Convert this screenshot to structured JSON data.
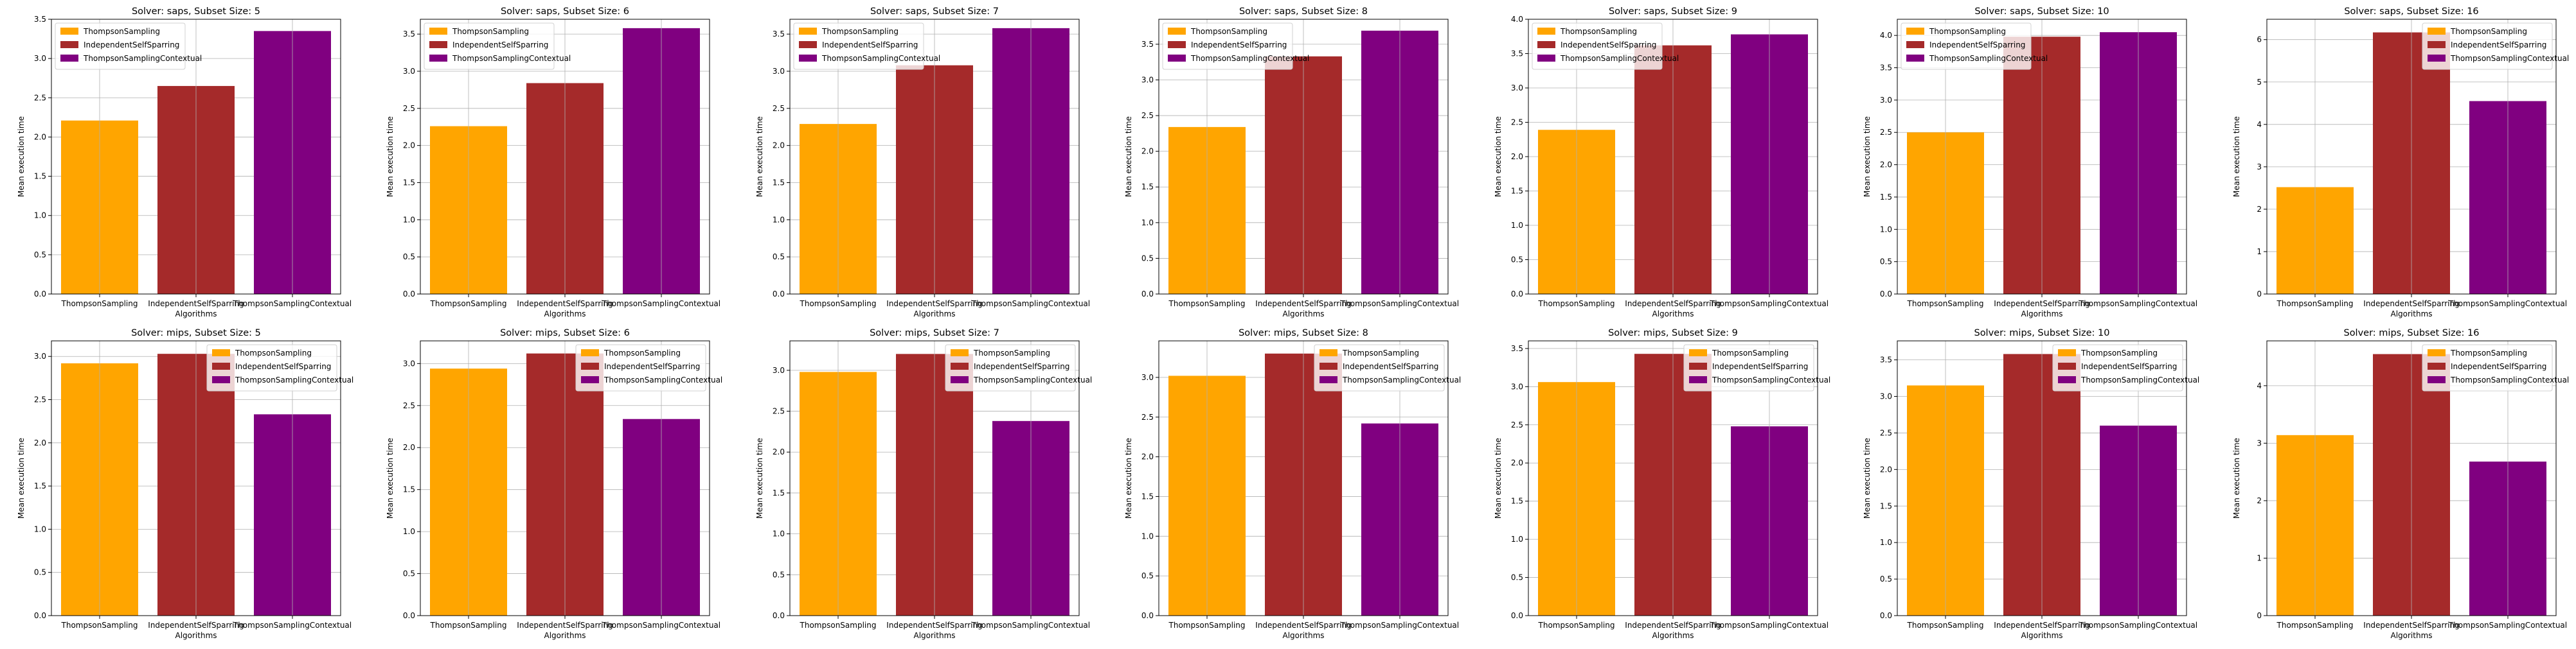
{
  "colors": {
    "ThompsonSampling": "#ffa500",
    "IndependentSelfSparring": "#a52a2a",
    "ThompsonSamplingContextual": "#800080",
    "grid": "#b0b0b0",
    "axis": "#000000"
  },
  "chart_data": [
    {
      "type": "bar",
      "title": "Solver: saps, Subset Size: 5",
      "xlabel": "Algorithms",
      "ylabel": "Mean execution time",
      "categories": [
        "ThompsonSampling",
        "IndependentSelfSparring",
        "ThompsonSamplingContextual"
      ],
      "values": [
        2.21,
        2.65,
        3.35
      ],
      "ylim": [
        0,
        3.5
      ],
      "yticks": [
        "0.0",
        "0.5",
        "1.0",
        "1.5",
        "2.0",
        "2.5",
        "3.0",
        "3.5"
      ],
      "grid": true,
      "legend": "top-left",
      "legend_entries": [
        "ThompsonSampling",
        "IndependentSelfSparring",
        "ThompsonSamplingContextual"
      ]
    },
    {
      "type": "bar",
      "title": "Solver: saps, Subset Size: 6",
      "xlabel": "Algorithms",
      "ylabel": "Mean execution time",
      "categories": [
        "ThompsonSampling",
        "IndependentSelfSparring",
        "ThompsonSamplingContextual"
      ],
      "values": [
        2.26,
        2.84,
        3.58
      ],
      "ylim": [
        0,
        3.7
      ],
      "yticks": [
        "0.0",
        "0.5",
        "1.0",
        "1.5",
        "2.0",
        "2.5",
        "3.0",
        "3.5"
      ],
      "grid": true,
      "legend": "top-left",
      "legend_entries": [
        "ThompsonSampling",
        "IndependentSelfSparring",
        "ThompsonSamplingContextual"
      ]
    },
    {
      "type": "bar",
      "title": "Solver: saps, Subset Size: 7",
      "xlabel": "Algorithms",
      "ylabel": "Mean execution time",
      "categories": [
        "ThompsonSampling",
        "IndependentSelfSparring",
        "ThompsonSamplingContextual"
      ],
      "values": [
        2.29,
        3.08,
        3.58
      ],
      "ylim": [
        0,
        3.7
      ],
      "yticks": [
        "0.0",
        "0.5",
        "1.0",
        "1.5",
        "2.0",
        "2.5",
        "3.0",
        "3.5"
      ],
      "grid": true,
      "legend": "top-left",
      "legend_entries": [
        "ThompsonSampling",
        "IndependentSelfSparring",
        "ThompsonSamplingContextual"
      ]
    },
    {
      "type": "bar",
      "title": "Solver: saps, Subset Size: 8",
      "xlabel": "Algorithms",
      "ylabel": "Mean execution time",
      "categories": [
        "ThompsonSampling",
        "IndependentSelfSparring",
        "ThompsonSamplingContextual"
      ],
      "values": [
        2.34,
        3.33,
        3.69
      ],
      "ylim": [
        0,
        3.85
      ],
      "yticks": [
        "0.0",
        "0.5",
        "1.0",
        "1.5",
        "2.0",
        "2.5",
        "3.0",
        "3.5"
      ],
      "grid": true,
      "legend": "top-left",
      "legend_entries": [
        "ThompsonSampling",
        "IndependentSelfSparring",
        "ThompsonSamplingContextual"
      ]
    },
    {
      "type": "bar",
      "title": "Solver: saps, Subset Size: 9",
      "xlabel": "Algorithms",
      "ylabel": "Mean execution time",
      "categories": [
        "ThompsonSampling",
        "IndependentSelfSparring",
        "ThompsonSamplingContextual"
      ],
      "values": [
        2.39,
        3.62,
        3.78
      ],
      "ylim": [
        0,
        4.0
      ],
      "yticks": [
        "0.0",
        "0.5",
        "1.0",
        "1.5",
        "2.0",
        "2.5",
        "3.0",
        "3.5",
        "4.0"
      ],
      "grid": true,
      "legend": "top-left",
      "legend_entries": [
        "ThompsonSampling",
        "IndependentSelfSparring",
        "ThompsonSamplingContextual"
      ]
    },
    {
      "type": "bar",
      "title": "Solver: saps, Subset Size: 10",
      "xlabel": "Algorithms",
      "ylabel": "Mean execution time",
      "categories": [
        "ThompsonSampling",
        "IndependentSelfSparring",
        "ThompsonSamplingContextual"
      ],
      "values": [
        2.5,
        3.98,
        4.05
      ],
      "ylim": [
        0,
        4.25
      ],
      "yticks": [
        "0.0",
        "0.5",
        "1.0",
        "1.5",
        "2.0",
        "2.5",
        "3.0",
        "3.5",
        "4.0"
      ],
      "grid": true,
      "legend": "top-left",
      "legend_entries": [
        "ThompsonSampling",
        "IndependentSelfSparring",
        "ThompsonSamplingContextual"
      ]
    },
    {
      "type": "bar",
      "title": "Solver: saps, Subset Size: 16",
      "xlabel": "Algorithms",
      "ylabel": "Mean execution time",
      "categories": [
        "ThompsonSampling",
        "IndependentSelfSparring",
        "ThompsonSamplingContextual"
      ],
      "values": [
        2.52,
        6.17,
        4.55
      ],
      "ylim": [
        0,
        6.48
      ],
      "yticks": [
        "0",
        "1",
        "2",
        "3",
        "4",
        "5",
        "6"
      ],
      "grid": true,
      "legend": "top-right",
      "legend_entries": [
        "ThompsonSampling",
        "IndependentSelfSparring",
        "ThompsonSamplingContextual"
      ]
    },
    {
      "type": "bar",
      "title": "Solver: mips, Subset Size: 5",
      "xlabel": "Algorithms",
      "ylabel": "Mean execution time",
      "categories": [
        "ThompsonSampling",
        "IndependentSelfSparring",
        "ThompsonSamplingContextual"
      ],
      "values": [
        2.92,
        3.03,
        2.33
      ],
      "ylim": [
        0,
        3.18
      ],
      "yticks": [
        "0.0",
        "0.5",
        "1.0",
        "1.5",
        "2.0",
        "2.5",
        "3.0"
      ],
      "grid": true,
      "legend": "top-right",
      "legend_entries": [
        "ThompsonSampling",
        "IndependentSelfSparring",
        "ThompsonSamplingContextual"
      ]
    },
    {
      "type": "bar",
      "title": "Solver: mips, Subset Size: 6",
      "xlabel": "Algorithms",
      "ylabel": "Mean execution time",
      "categories": [
        "ThompsonSampling",
        "IndependentSelfSparring",
        "ThompsonSamplingContextual"
      ],
      "values": [
        2.94,
        3.12,
        2.34
      ],
      "ylim": [
        0,
        3.27
      ],
      "yticks": [
        "0.0",
        "0.5",
        "1.0",
        "1.5",
        "2.0",
        "2.5",
        "3.0"
      ],
      "grid": true,
      "legend": "top-right",
      "legend_entries": [
        "ThompsonSampling",
        "IndependentSelfSparring",
        "ThompsonSamplingContextual"
      ]
    },
    {
      "type": "bar",
      "title": "Solver: mips, Subset Size: 7",
      "xlabel": "Algorithms",
      "ylabel": "Mean execution time",
      "categories": [
        "ThompsonSampling",
        "IndependentSelfSparring",
        "ThompsonSamplingContextual"
      ],
      "values": [
        2.98,
        3.2,
        2.38
      ],
      "ylim": [
        0,
        3.36
      ],
      "yticks": [
        "0.0",
        "0.5",
        "1.0",
        "1.5",
        "2.0",
        "2.5",
        "3.0"
      ],
      "grid": true,
      "legend": "top-right",
      "legend_entries": [
        "ThompsonSampling",
        "IndependentSelfSparring",
        "ThompsonSamplingContextual"
      ]
    },
    {
      "type": "bar",
      "title": "Solver: mips, Subset Size: 8",
      "xlabel": "Algorithms",
      "ylabel": "Mean execution time",
      "categories": [
        "ThompsonSampling",
        "IndependentSelfSparring",
        "ThompsonSamplingContextual"
      ],
      "values": [
        3.02,
        3.3,
        2.42
      ],
      "ylim": [
        0,
        3.46
      ],
      "yticks": [
        "0.0",
        "0.5",
        "1.0",
        "1.5",
        "2.0",
        "2.5",
        "3.0"
      ],
      "grid": true,
      "legend": "top-right",
      "legend_entries": [
        "ThompsonSampling",
        "IndependentSelfSparring",
        "ThompsonSamplingContextual"
      ]
    },
    {
      "type": "bar",
      "title": "Solver: mips, Subset Size: 9",
      "xlabel": "Algorithms",
      "ylabel": "Mean execution time",
      "categories": [
        "ThompsonSampling",
        "IndependentSelfSparring",
        "ThompsonSamplingContextual"
      ],
      "values": [
        3.06,
        3.43,
        2.48
      ],
      "ylim": [
        0,
        3.6
      ],
      "yticks": [
        "0.0",
        "0.5",
        "1.0",
        "1.5",
        "2.0",
        "2.5",
        "3.0",
        "3.5"
      ],
      "grid": true,
      "legend": "top-right",
      "legend_entries": [
        "ThompsonSampling",
        "IndependentSelfSparring",
        "ThompsonSamplingContextual"
      ]
    },
    {
      "type": "bar",
      "title": "Solver: mips, Subset Size: 10",
      "xlabel": "Algorithms",
      "ylabel": "Mean execution time",
      "categories": [
        "ThompsonSampling",
        "IndependentSelfSparring",
        "ThompsonSamplingContextual"
      ],
      "values": [
        3.15,
        3.58,
        2.6
      ],
      "ylim": [
        0,
        3.76
      ],
      "yticks": [
        "0.0",
        "0.5",
        "1.0",
        "1.5",
        "2.0",
        "2.5",
        "3.0",
        "3.5"
      ],
      "grid": true,
      "legend": "top-right",
      "legend_entries": [
        "ThompsonSampling",
        "IndependentSelfSparring",
        "ThompsonSamplingContextual"
      ]
    },
    {
      "type": "bar",
      "title": "Solver: mips, Subset Size: 16",
      "xlabel": "Algorithms",
      "ylabel": "Mean execution time",
      "categories": [
        "ThompsonSampling",
        "IndependentSelfSparring",
        "ThompsonSamplingContextual"
      ],
      "values": [
        3.14,
        4.55,
        2.68
      ],
      "ylim": [
        0,
        4.78
      ],
      "yticks": [
        "0",
        "1",
        "2",
        "3",
        "4"
      ],
      "grid": true,
      "legend": "top-right",
      "legend_entries": [
        "ThompsonSampling",
        "IndependentSelfSparring",
        "ThompsonSamplingContextual"
      ]
    }
  ]
}
